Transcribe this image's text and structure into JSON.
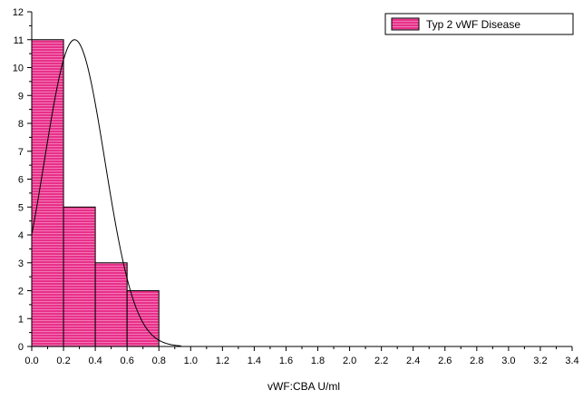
{
  "chart_data": {
    "type": "bar",
    "subtype": "histogram",
    "title": "",
    "xlabel": "vWF:CBA U/ml",
    "ylabel": "",
    "xlim": [
      0,
      3.4
    ],
    "ylim": [
      0,
      12
    ],
    "x_ticks": [
      "0.0",
      "0.2",
      "0.4",
      "0.6",
      "0.8",
      "1.0",
      "1.2",
      "1.4",
      "1.6",
      "1.8",
      "2.0",
      "2.2",
      "2.4",
      "2.6",
      "2.8",
      "3.0",
      "3.2",
      "3.4"
    ],
    "y_ticks": [
      "0",
      "1",
      "2",
      "3",
      "4",
      "5",
      "6",
      "7",
      "8",
      "9",
      "10",
      "11",
      "12"
    ],
    "grid": false,
    "legend_position": "top-right",
    "bins": [
      {
        "start": 0.0,
        "end": 0.2,
        "count": 11
      },
      {
        "start": 0.2,
        "end": 0.4,
        "count": 5
      },
      {
        "start": 0.4,
        "end": 0.6,
        "count": 3
      },
      {
        "start": 0.6,
        "end": 0.8,
        "count": 2
      }
    ],
    "series": [
      {
        "name": "Typ 2 vWF Disease",
        "color": "#e8308a",
        "type": "histogram"
      },
      {
        "type": "normal-fit",
        "color": "#000000",
        "mean": 0.27,
        "sd": 0.19,
        "peak": 11,
        "x_range": [
          0.0,
          0.94
        ]
      }
    ]
  }
}
